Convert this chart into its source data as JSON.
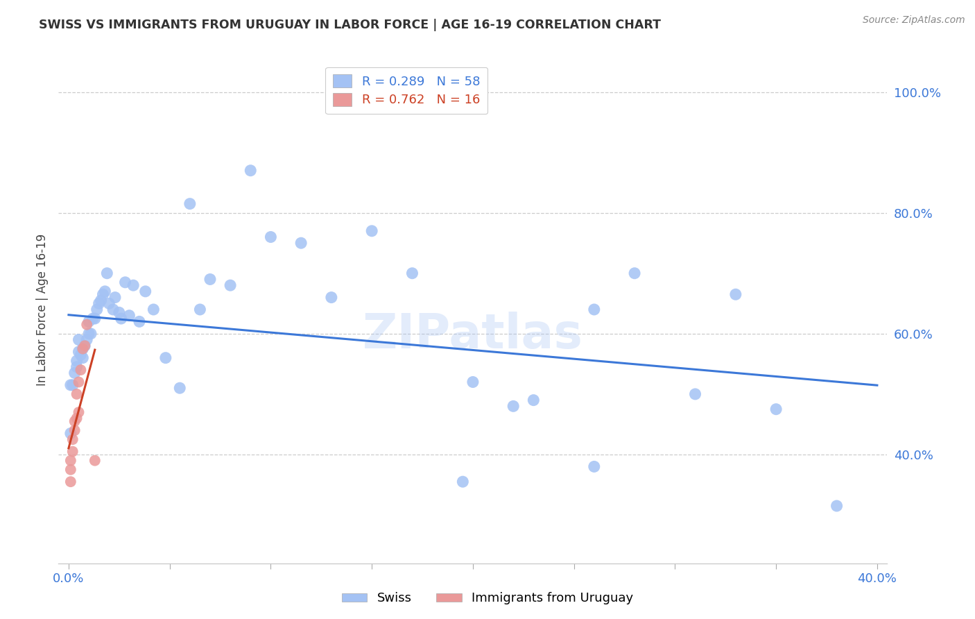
{
  "title": "SWISS VS IMMIGRANTS FROM URUGUAY IN LABOR FORCE | AGE 16-19 CORRELATION CHART",
  "source": "Source: ZipAtlas.com",
  "ylabel": "In Labor Force | Age 16-19",
  "xlim": [
    -0.005,
    0.405
  ],
  "ylim": [
    0.22,
    1.06
  ],
  "xtick_positions": [
    0.0,
    0.05,
    0.1,
    0.15,
    0.2,
    0.25,
    0.3,
    0.35,
    0.4
  ],
  "xtick_labels": [
    "0.0%",
    "",
    "",
    "",
    "",
    "",
    "",
    "",
    "40.0%"
  ],
  "ytick_positions": [
    0.4,
    0.6,
    0.8,
    1.0
  ],
  "ytick_labels": [
    "40.0%",
    "60.0%",
    "80.0%",
    "100.0%"
  ],
  "blue_color": "#a4c2f4",
  "pink_color": "#ea9999",
  "blue_line_color": "#3c78d8",
  "pink_line_color": "#cc4125",
  "axis_label_color": "#3c78d8",
  "watermark": "ZIPatlas",
  "swiss_label": "Swiss",
  "uruguay_label": "Immigrants from Uruguay",
  "blue_R": 0.289,
  "blue_N": 58,
  "pink_R": 0.762,
  "pink_N": 16,
  "swiss_x": [
    0.001,
    0.001,
    0.002,
    0.003,
    0.004,
    0.004,
    0.005,
    0.005,
    0.006,
    0.007,
    0.007,
    0.008,
    0.009,
    0.01,
    0.01,
    0.011,
    0.012,
    0.013,
    0.014,
    0.015,
    0.016,
    0.017,
    0.018,
    0.019,
    0.02,
    0.022,
    0.023,
    0.025,
    0.026,
    0.028,
    0.03,
    0.032,
    0.035,
    0.038,
    0.042,
    0.048,
    0.055,
    0.06,
    0.065,
    0.07,
    0.08,
    0.09,
    0.1,
    0.115,
    0.13,
    0.15,
    0.17,
    0.2,
    0.23,
    0.26,
    0.28,
    0.31,
    0.33,
    0.35,
    0.195,
    0.22,
    0.26,
    0.38
  ],
  "swiss_y": [
    0.435,
    0.515,
    0.515,
    0.535,
    0.545,
    0.555,
    0.57,
    0.59,
    0.565,
    0.56,
    0.575,
    0.58,
    0.59,
    0.6,
    0.62,
    0.6,
    0.625,
    0.625,
    0.64,
    0.65,
    0.655,
    0.665,
    0.67,
    0.7,
    0.65,
    0.64,
    0.66,
    0.635,
    0.625,
    0.685,
    0.63,
    0.68,
    0.62,
    0.67,
    0.64,
    0.56,
    0.51,
    0.815,
    0.64,
    0.69,
    0.68,
    0.87,
    0.76,
    0.75,
    0.66,
    0.77,
    0.7,
    0.52,
    0.49,
    0.64,
    0.7,
    0.5,
    0.665,
    0.475,
    0.355,
    0.48,
    0.38,
    0.315
  ],
  "uruguay_x": [
    0.001,
    0.001,
    0.001,
    0.002,
    0.002,
    0.003,
    0.003,
    0.004,
    0.004,
    0.005,
    0.005,
    0.006,
    0.007,
    0.008,
    0.009,
    0.013
  ],
  "uruguay_y": [
    0.355,
    0.375,
    0.39,
    0.405,
    0.425,
    0.44,
    0.455,
    0.46,
    0.5,
    0.47,
    0.52,
    0.54,
    0.575,
    0.58,
    0.615,
    0.39
  ]
}
